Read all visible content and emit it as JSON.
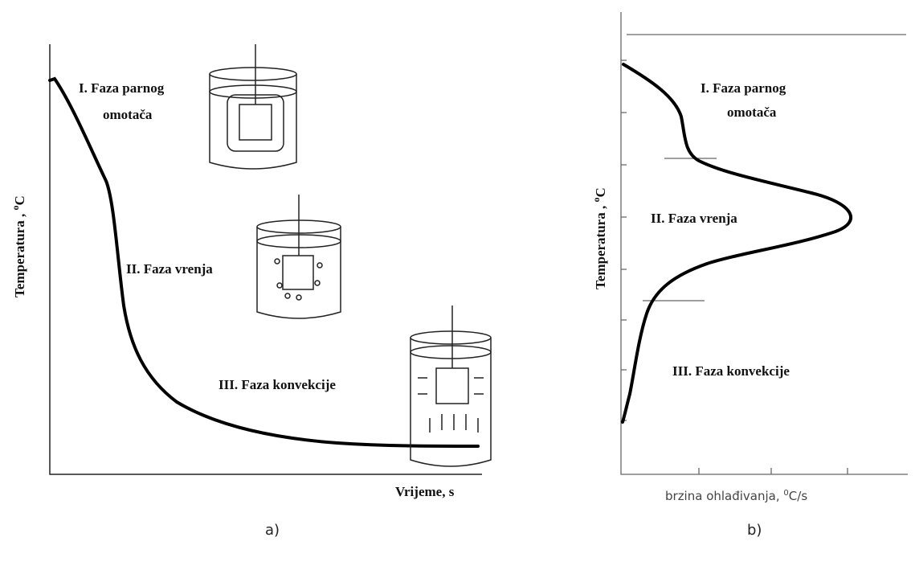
{
  "panel_a": {
    "y_label": {
      "text": "Temperatura ,",
      "sup": "o",
      "unit": "C"
    },
    "x_label": "Vrijeme, s",
    "phases": [
      [
        "I. Faza parnog",
        "omotača"
      ],
      [
        "II. Faza vrenja"
      ],
      [
        "III. Faza konvekcije"
      ]
    ],
    "caption": "a)"
  },
  "panel_b": {
    "y_label": {
      "text": "Temperatura ,",
      "sup": "o",
      "unit": "C"
    },
    "x_label": {
      "text": "brzina ohlađivanja,",
      "sup": "0",
      "unit": "C/s"
    },
    "phases": [
      [
        "I. Faza parnog",
        "omotača"
      ],
      [
        "II. Faza vrenja"
      ],
      [
        "III. Faza konvekcije"
      ]
    ],
    "caption": "b)"
  }
}
